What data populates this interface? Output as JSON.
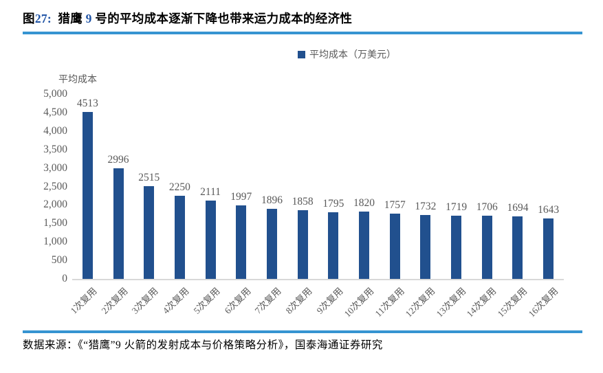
{
  "header": {
    "title_parts": [
      {
        "text": "图",
        "color": "black"
      },
      {
        "text": "27:",
        "color": "blue"
      },
      {
        "text": "  猎鹰 ",
        "color": "black"
      },
      {
        "text": "9",
        "color": "blue"
      },
      {
        "text": " 号的平均成本逐渐下降也带来运力成本的经济性",
        "color": "black"
      }
    ]
  },
  "legend": {
    "label": "平均成本（万美元）"
  },
  "chart_data": {
    "type": "bar",
    "title": "猎鹰9号的平均成本逐渐下降也带来运力成本的经济性",
    "ylabel": "平均成本",
    "xlabel": "",
    "legend_entries": [
      "平均成本（万美元）"
    ],
    "legend_position": "top",
    "grid": false,
    "categories": [
      "1次复用",
      "2次复用",
      "3次复用",
      "4次复用",
      "5次复用",
      "6次复用",
      "7次复用",
      "8次复用",
      "9次复用",
      "10次复用",
      "11次复用",
      "12次复用",
      "13次复用",
      "14次复用",
      "15次复用",
      "16次复用"
    ],
    "values": [
      4513,
      2996,
      2515,
      2250,
      2111,
      1997,
      1896,
      1858,
      1795,
      1820,
      1757,
      1732,
      1719,
      1706,
      1694,
      1643
    ],
    "ylim": [
      0,
      5000
    ],
    "ytick_step": 500,
    "ytick_labels": [
      "0",
      "500",
      "1,000",
      "1,500",
      "2,000",
      "2,500",
      "3,000",
      "3,500",
      "4,000",
      "4,500",
      "5,000"
    ]
  },
  "colors": {
    "bar": "#21508E",
    "accent_blue": "#3694D1",
    "number_blue": "#1F53A5",
    "label_gray": "#595959",
    "axis_line": "#D8D8D8"
  },
  "footer": {
    "source": "数据来源：《“猎鹰”9 火箭的发射成本与价格策略分析》，国泰海通证券研究"
  }
}
